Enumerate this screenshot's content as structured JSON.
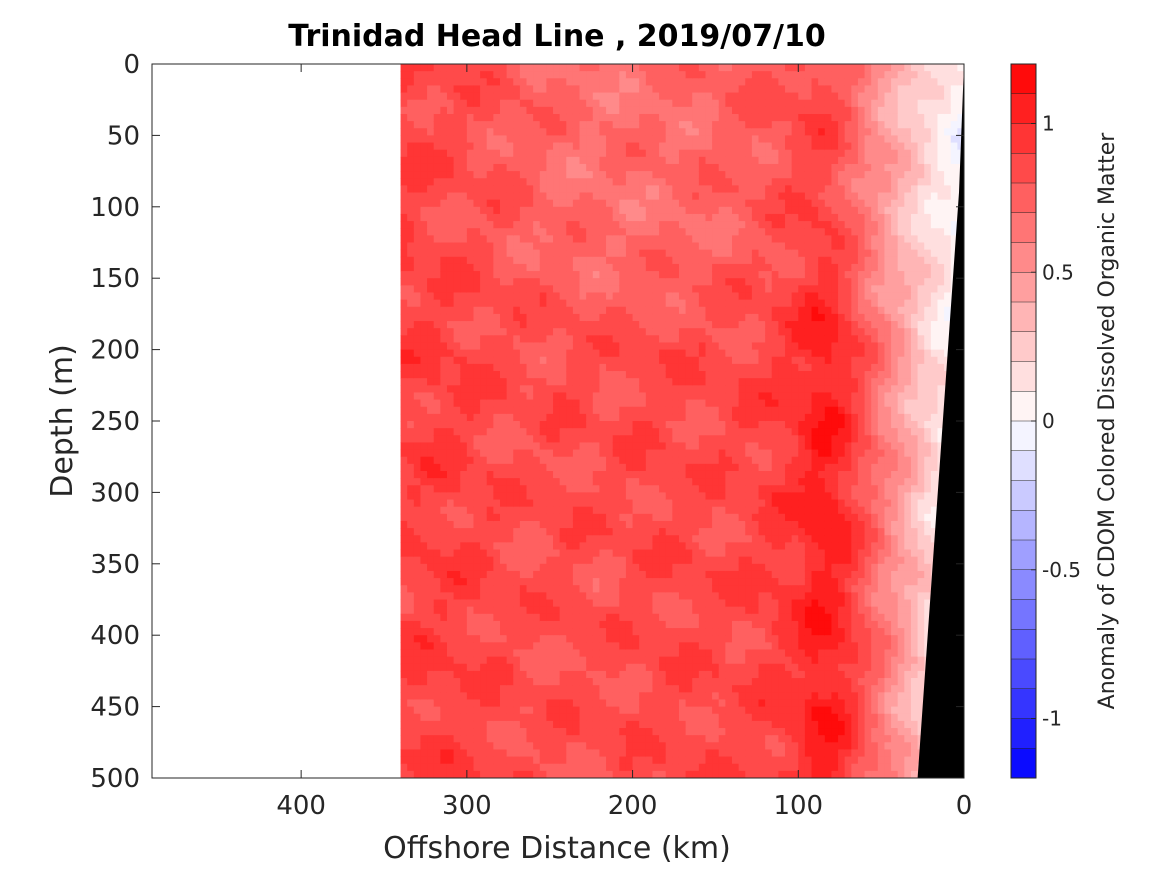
{
  "chart_data": {
    "type": "heatmap",
    "title": "Trinidad Head Line , 2019/07/10",
    "xlabel": "Offshore Distance (km)",
    "ylabel": "Depth (m)",
    "x_axis_reversed": true,
    "y_axis_reversed": true,
    "xlim": [
      0,
      490
    ],
    "ylim": [
      0,
      500
    ],
    "x_ticks": [
      400,
      300,
      200,
      100,
      0
    ],
    "y_ticks": [
      0,
      50,
      100,
      150,
      200,
      250,
      300,
      350,
      400,
      450,
      500
    ],
    "data_extent_km": [
      0,
      340
    ],
    "colorbar": {
      "label": "Anomaly of CDOM Colored Dissolved Organic Matter",
      "min": -1.2,
      "max": 1.2,
      "step": 0.1,
      "ticks": [
        -1,
        -0.5,
        0,
        0.5,
        1
      ],
      "tick_labels": [
        "-1",
        "-0.5",
        "0",
        "0.5",
        "1"
      ],
      "low_color": "#0000ff",
      "mid_color": "#ffffff",
      "high_color": "#ff0000"
    },
    "bottom_mask": {
      "color": "#000000",
      "points": [
        [
          0,
          0
        ],
        [
          3,
          90
        ],
        [
          28,
          500
        ],
        [
          0,
          500
        ]
      ]
    },
    "anomaly_profile": {
      "distance_km": [
        340,
        320,
        300,
        280,
        260,
        240,
        220,
        200,
        180,
        160,
        140,
        120,
        100,
        90,
        80,
        70,
        60,
        50,
        40,
        30,
        20,
        10,
        5
      ],
      "upper_layer_0_150m": [
        0.9,
        0.85,
        0.82,
        0.8,
        0.75,
        0.7,
        0.68,
        0.68,
        0.7,
        0.72,
        0.75,
        0.78,
        0.85,
        0.88,
        0.85,
        0.75,
        0.62,
        0.5,
        0.38,
        0.28,
        0.15,
        0.08,
        0.0
      ],
      "lower_layer_150_500m": [
        0.88,
        0.9,
        0.88,
        0.85,
        0.82,
        0.85,
        0.82,
        0.85,
        0.85,
        0.85,
        0.85,
        0.88,
        0.95,
        1.05,
        1.05,
        0.95,
        0.8,
        0.65,
        0.5,
        0.35,
        0.2,
        0.1,
        0.0
      ]
    }
  }
}
